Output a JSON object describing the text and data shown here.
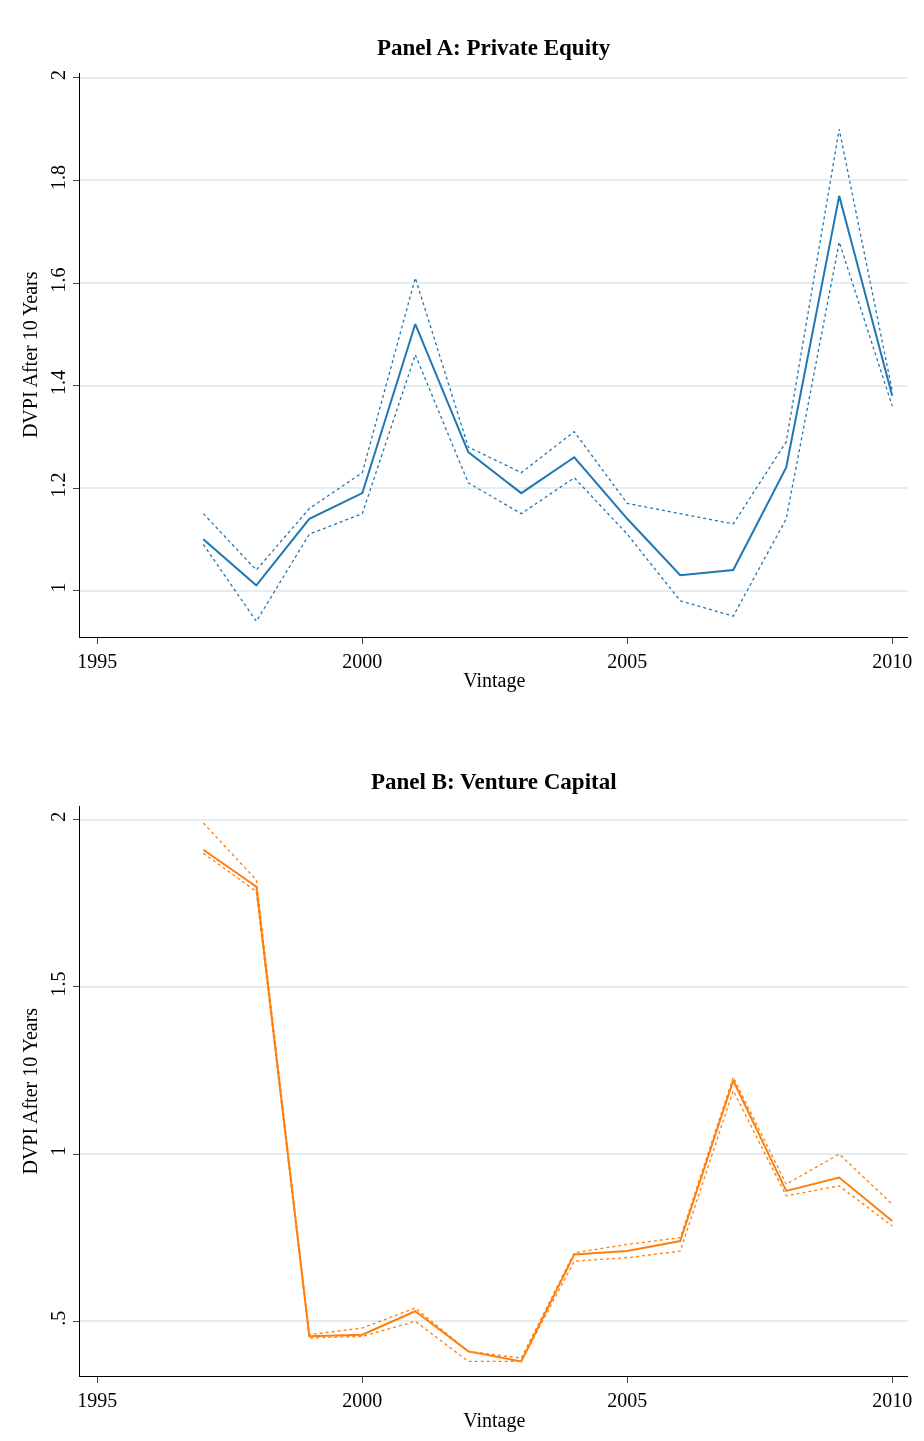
{
  "chart_data": [
    {
      "type": "line",
      "title": "Panel A: Private Equity",
      "xlabel": "Vintage",
      "ylabel": "DVPI After 10 Years",
      "x": [
        1997,
        1998,
        1999,
        2000,
        2001,
        2002,
        2003,
        2004,
        2005,
        2006,
        2007,
        2008,
        2009,
        2010
      ],
      "series": [
        {
          "color": "#1f77b4",
          "line_style": "solid",
          "values": [
            1.1,
            1.01,
            1.14,
            1.19,
            1.52,
            1.27,
            1.19,
            1.26,
            1.14,
            1.03,
            1.04,
            1.24,
            1.77,
            1.38
          ]
        },
        {
          "color": "#1f77b4",
          "line_style": "dotted",
          "values": [
            1.15,
            1.04,
            1.16,
            1.23,
            1.61,
            1.28,
            1.23,
            1.31,
            1.17,
            1.15,
            1.13,
            1.29,
            1.9,
            1.39
          ]
        },
        {
          "color": "#1f77b4",
          "line_style": "dotted",
          "values": [
            1.09,
            0.94,
            1.11,
            1.15,
            1.46,
            1.21,
            1.15,
            1.22,
            1.11,
            0.98,
            0.95,
            1.14,
            1.68,
            1.36
          ]
        }
      ],
      "xlim": [
        1994.68,
        2010.3
      ],
      "xticks": [
        1995,
        2000,
        2005,
        2010
      ],
      "ylim": [
        0.91,
        2.01
      ],
      "yticks": [
        1,
        1.2,
        1.4,
        1.6,
        1.8,
        2
      ],
      "grid": "y"
    },
    {
      "type": "line",
      "title": "Panel B: Venture Capital",
      "xlabel": "Vintage",
      "ylabel": "DVPI After 10 Years",
      "x": [
        1997,
        1998,
        1999,
        2000,
        2001,
        2002,
        2003,
        2004,
        2005,
        2006,
        2007,
        2008,
        2009,
        2010
      ],
      "series": [
        {
          "color": "#ff7f0e",
          "line_style": "solid",
          "values": [
            1.91,
            1.8,
            0.455,
            0.46,
            0.53,
            0.41,
            0.38,
            0.7,
            0.71,
            0.74,
            1.22,
            0.89,
            0.93,
            0.8
          ]
        },
        {
          "color": "#ff7f0e",
          "line_style": "dotted",
          "values": [
            1.99,
            1.82,
            0.46,
            0.48,
            0.54,
            0.41,
            0.39,
            0.705,
            0.73,
            0.75,
            1.23,
            0.91,
            1.0,
            0.85
          ]
        },
        {
          "color": "#ff7f0e",
          "line_style": "dotted",
          "values": [
            1.9,
            1.785,
            0.45,
            0.455,
            0.5,
            0.38,
            0.38,
            0.68,
            0.69,
            0.71,
            1.19,
            0.875,
            0.905,
            0.785
          ]
        }
      ],
      "xlim": [
        1994.68,
        2010.3
      ],
      "xticks": [
        1995,
        2000,
        2005,
        2010
      ],
      "ylim": [
        0.336,
        2.04
      ],
      "yticks": [
        {
          "value": 0.5,
          "label": ".5"
        },
        1,
        1.5,
        2
      ],
      "grid": "y"
    }
  ]
}
